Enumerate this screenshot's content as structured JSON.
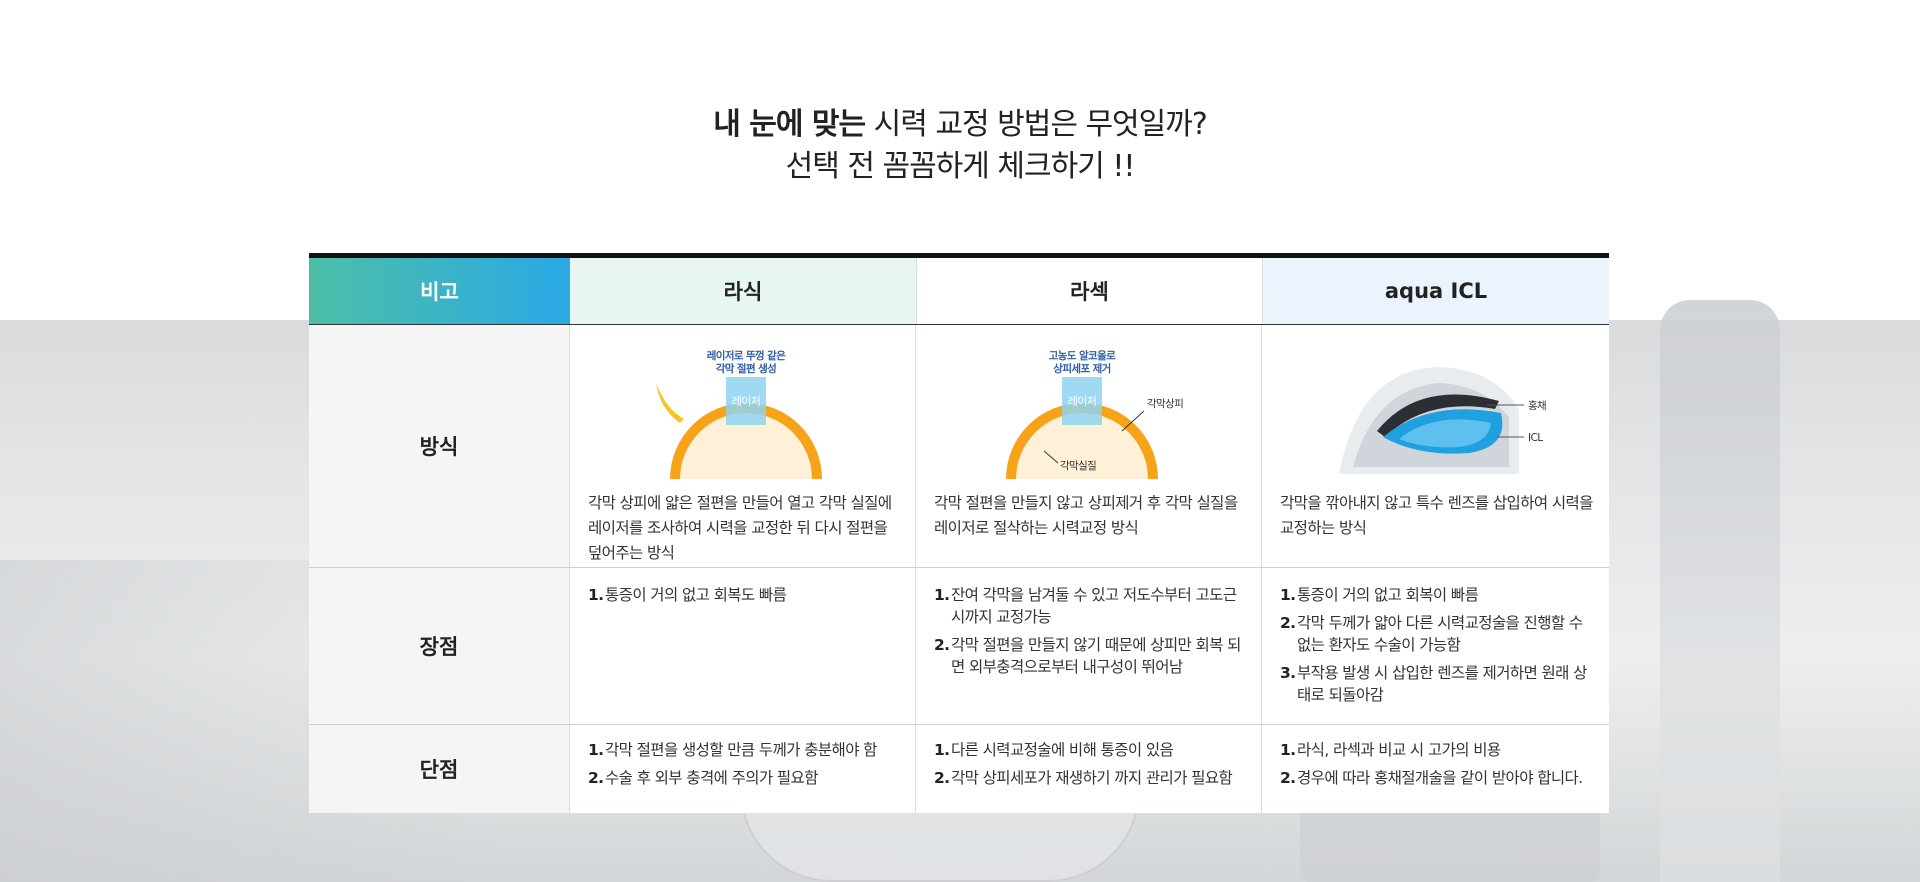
{
  "heading": {
    "line1_bold": "내 눈에 맞는",
    "line1_rest": " 시력 교정 방법은 무엇일까?",
    "line2": "선택 전 꼼꼼하게 체크하기 !!"
  },
  "table": {
    "headers": [
      "비고",
      "라식",
      "라섹",
      "aqua ICL"
    ],
    "rows": {
      "method": {
        "label": "방식",
        "lasik": {
          "illustration": {
            "callout": "레이저로 뚜껑 같은\n각막 절편 생성",
            "laser": "레이저"
          },
          "text": "각막 상피에 얇은 절편을 만들어 열고 각막 실질에 레이저를 조사하여 시력을 교정한 뒤 다시 절편을 덮어주는 방식"
        },
        "lasek": {
          "illustration": {
            "callout": "고농도 알코올로\n상피세포 제거",
            "laser": "레이저",
            "epithelium": "각막상피",
            "stroma": "각막실질"
          },
          "text": "각막 절편을 만들지 않고 상피제거 후 각막 실질을 레이저로 절삭하는 시력교정 방식"
        },
        "icl": {
          "illustration": {
            "iris": "홍채",
            "icl": "ICL"
          },
          "text": "각막을 깎아내지 않고 특수 렌즈를 삽입하여 시력을 교정하는 방식"
        }
      },
      "pros": {
        "label": "장점",
        "lasik": [
          "통증이 거의 없고 회복도 빠름"
        ],
        "lasek": [
          "잔여 각막을 남겨둘 수 있고 저도수부터 고도근시까지 교정가능",
          "각막 절편을 만들지 않기 때문에 상피만 회복 되면 외부충격으로부터 내구성이 뛰어남"
        ],
        "icl": [
          "통증이 거의 없고 회복이 빠름",
          "각막 두께가 얇아 다른 시력교정술을 진행할 수 없는 환자도 수술이 가능함",
          "부작용 발생 시 삽입한 렌즈를 제거하면 원래 상태로 되돌아감"
        ]
      },
      "cons": {
        "label": "단점",
        "lasik": [
          "각막 절편을 생성할 만큼 두께가 충분해야 함",
          "수술 후 외부 충격에 주의가 필요함"
        ],
        "lasek": [
          "다른 시력교정술에 비해 통증이 있음",
          "각막 상피세포가 재생하기 까지 관리가 필요함"
        ],
        "icl": [
          "라식, 라섹과 비교 시 고가의 비용",
          "경우에 따라 홍채절개술을 같이 받아야 합니다."
        ]
      }
    },
    "list_numbers": [
      "1.",
      "2.",
      "3."
    ]
  },
  "colors": {
    "header_gradient_start": "#4dbfa6",
    "header_gradient_end": "#2aa9e6",
    "lasik_header_bg": "#e8f6f2",
    "icl_header_bg": "#ebf4fc",
    "cornea_orange": "#f7a31a",
    "laser_blue": "#6fc6ea"
  }
}
